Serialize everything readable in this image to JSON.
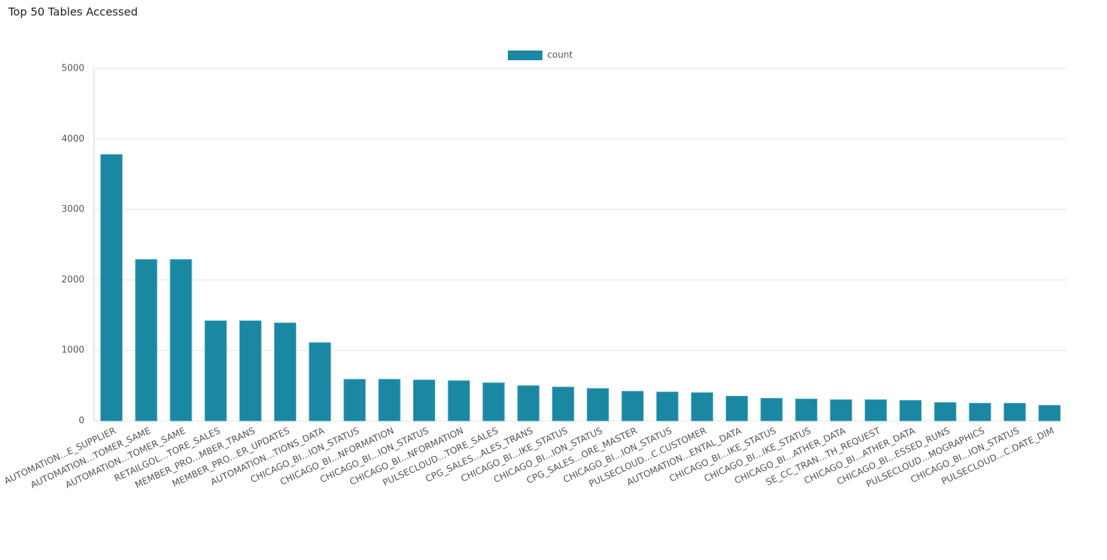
{
  "chart_data": {
    "type": "bar",
    "title": "Top 50 Tables Accessed",
    "categories": [
      "AUTOMATION...E_SUPPLIER",
      "AUTOMATION...TOMER_SAME",
      "AUTOMATION...TOMER_SAME",
      "RETAILGOL...TORE_SALES",
      "MEMBER_PRO...MBER_TRANS",
      "MEMBER_PRO...ER_UPDATES",
      "AUTOMATION...TIONS_DATA",
      "CHICAGO_BI...ION_STATUS",
      "CHICAGO_BI...NFORMATION",
      "CHICAGO_BI...ION_STATUS",
      "CHICAGO_BI...NFORMATION",
      "PULSECLOUD...TORE_SALES",
      "CPG_SALES...ALES_TRANS",
      "CHICAGO_BI...IKE_STATUS",
      "CHICAGO_BI...ION_STATUS",
      "CPG_SALES...ORE_MASTER",
      "CHICAGO_BI...ION_STATUS",
      "PULSECLOUD...C.CUSTOMER",
      "AUTOMATION...ENTAL_DATA",
      "CHICAGO_BI...IKE_STATUS",
      "CHICAGO_BI...IKE_STATUS",
      "CHICAGO_BI...ATHER_DATA",
      "SE_CC_TRAN...TH_REQUEST",
      "CHICAGO_BI...ATHER_DATA",
      "CHICAGO_BI...ESSED_RUNS",
      "PULSECLOUD...MOGRAPHICS",
      "CHICAGO_BI...ION_STATUS",
      "PULSECLOUD...C.DATE_DIM"
    ],
    "series": [
      {
        "name": "count",
        "color": "#1a87a3",
        "values": [
          3780,
          2290,
          2290,
          1420,
          1420,
          1390,
          1110,
          590,
          590,
          580,
          570,
          540,
          500,
          480,
          460,
          420,
          410,
          400,
          350,
          320,
          310,
          300,
          300,
          290,
          260,
          250,
          250,
          220
        ]
      }
    ],
    "ylim": [
      0,
      5000
    ],
    "yticks": [
      0,
      1000,
      2000,
      3000,
      4000,
      5000
    ],
    "grid": true
  }
}
